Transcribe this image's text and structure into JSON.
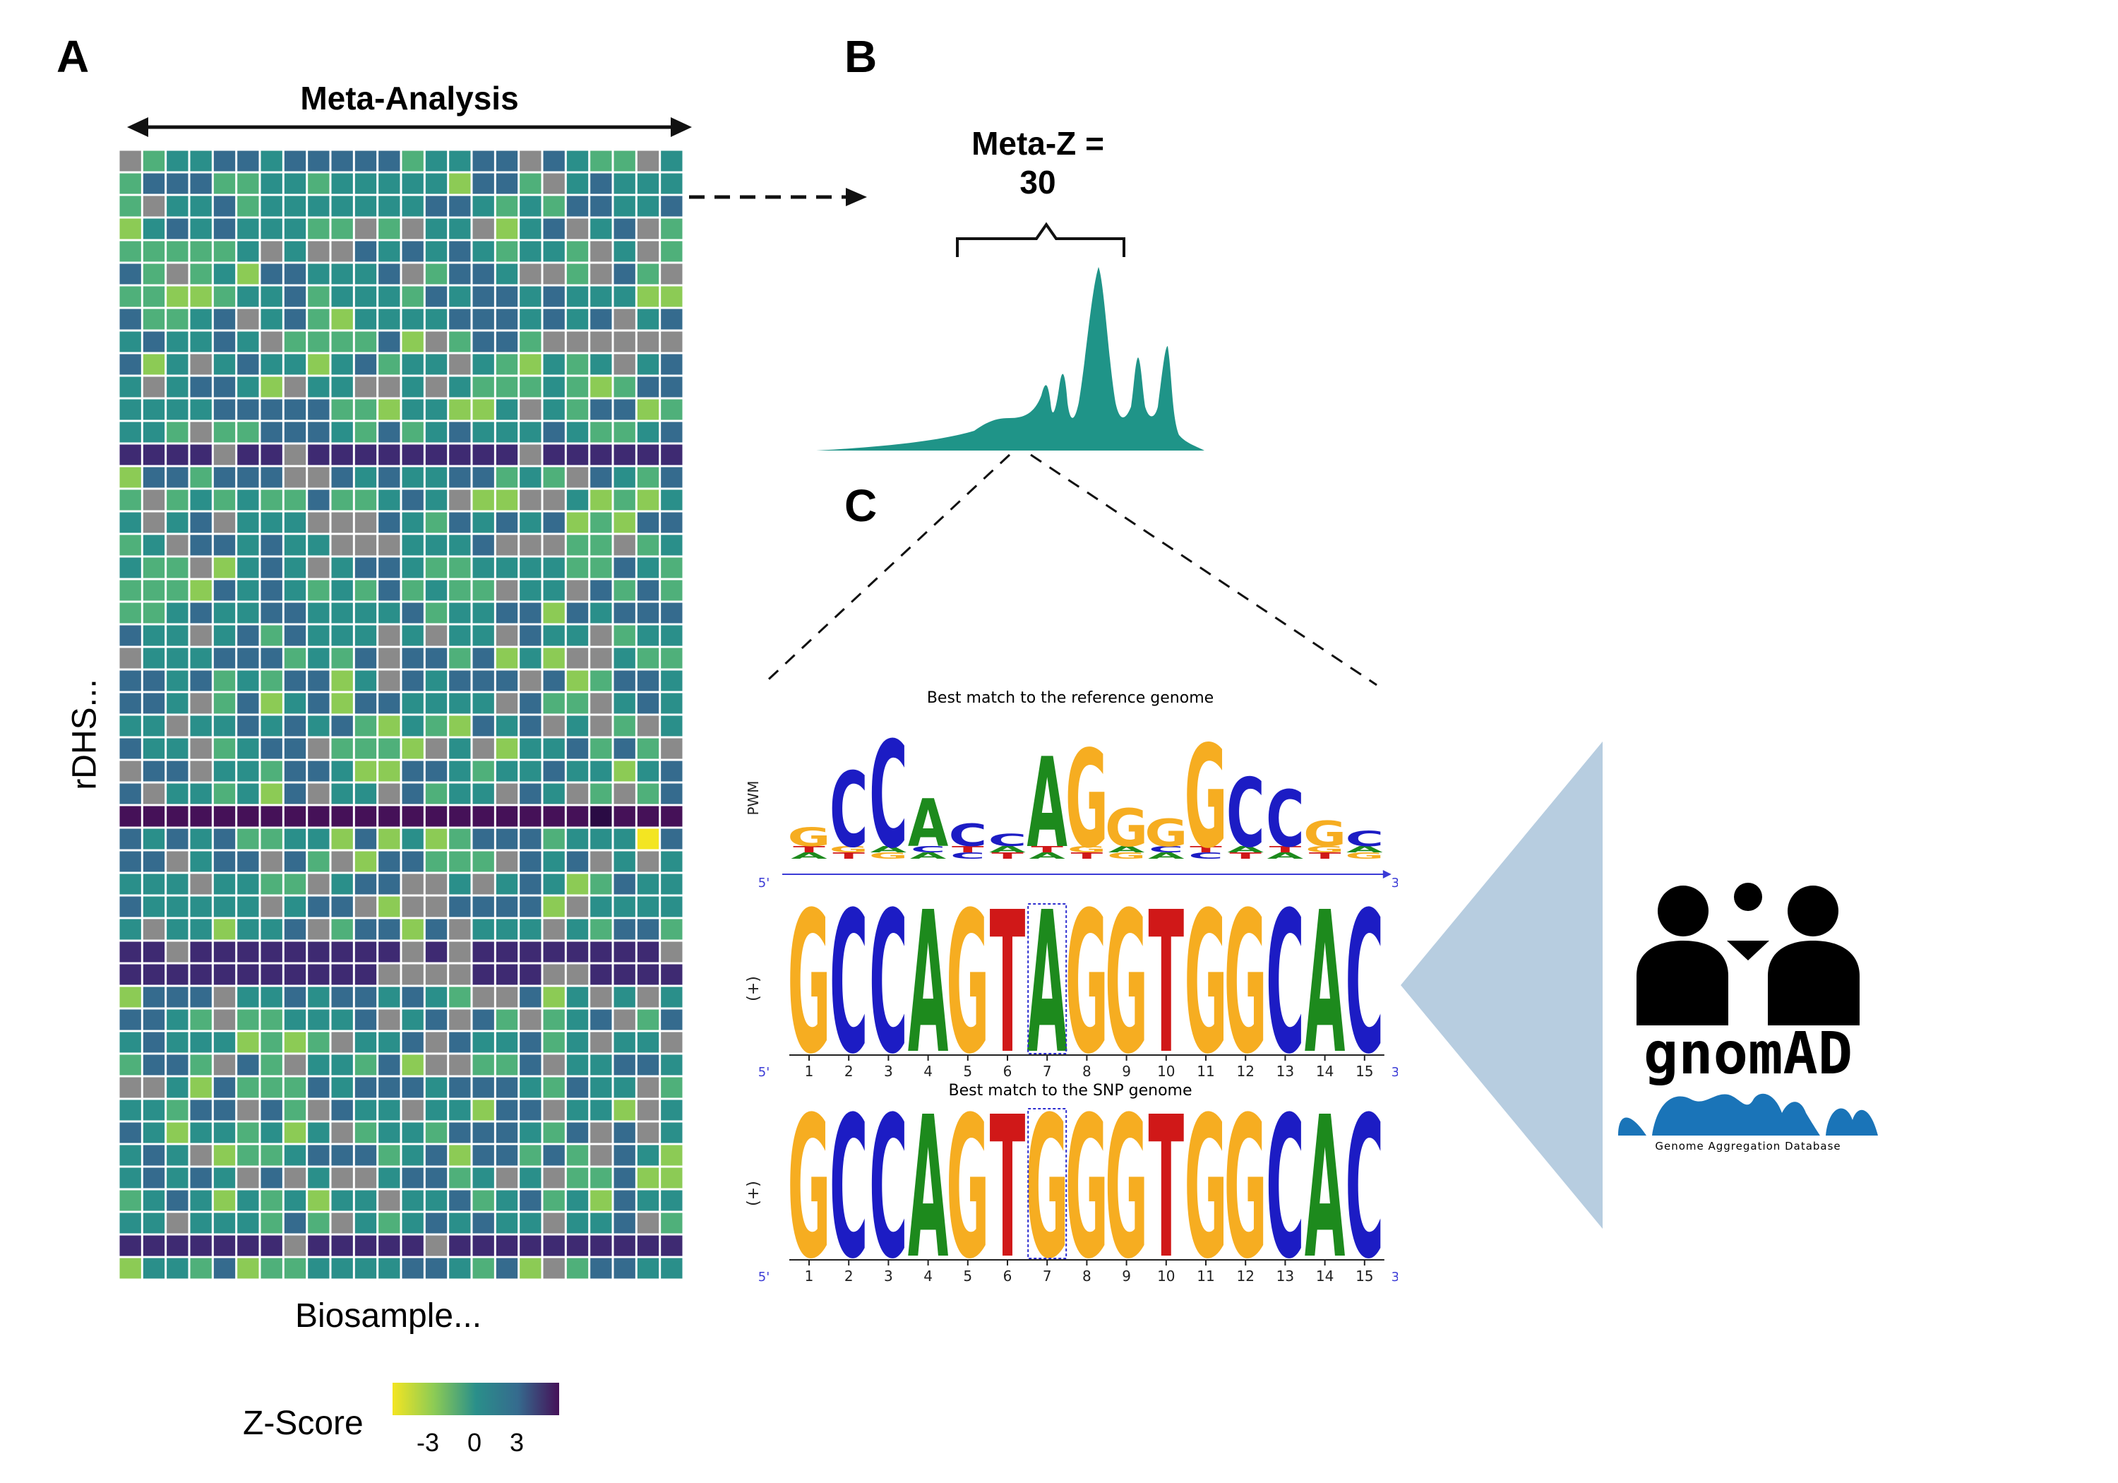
{
  "panels": {
    "a": "A",
    "b": "B",
    "c": "C"
  },
  "heatmap": {
    "top_label": "Meta-Analysis",
    "y_label": "rDHS...",
    "x_label": "Biosample...",
    "rows": 50,
    "cols": 24,
    "legend": {
      "title": "Z-Score",
      "ticks": [
        "-3",
        "0",
        "3"
      ]
    },
    "colors": {
      "teal": "#2a8f8a",
      "blue": "#356b8e",
      "green": "#4fb07a",
      "lime": "#8ccb55",
      "yellow": "#f3e522",
      "purple": "#3e2a72",
      "dark": "#451158",
      "gray": "#8a8a8a"
    }
  },
  "meta": {
    "label": "Meta-Z =\n30",
    "peak_color": "#1f9488"
  },
  "motif": {
    "title_ref": "Best match to the reference genome",
    "title_snp": "Best match to the SNP genome",
    "pwm_label": "PWM",
    "strand_label": "(+)",
    "five": "5'",
    "three": "3'",
    "ref_seq": [
      "G",
      "C",
      "C",
      "A",
      "G",
      "T",
      "A",
      "G",
      "G",
      "T",
      "G",
      "G",
      "C",
      "A",
      "C"
    ],
    "snp_seq": [
      "G",
      "C",
      "C",
      "A",
      "G",
      "T",
      "G",
      "G",
      "G",
      "T",
      "G",
      "G",
      "C",
      "A",
      "C"
    ],
    "positions": [
      "1",
      "2",
      "3",
      "4",
      "5",
      "6",
      "7",
      "8",
      "9",
      "10",
      "11",
      "12",
      "13",
      "14",
      "15"
    ],
    "pwm_top": [
      "G",
      "C",
      "C",
      "A",
      "C",
      "C",
      "A",
      "G",
      "G",
      "G",
      "G",
      "C",
      "C",
      "G",
      "C"
    ],
    "pwm_heights": [
      0.15,
      0.6,
      0.85,
      0.38,
      0.18,
      0.1,
      0.72,
      0.78,
      0.3,
      0.22,
      0.82,
      0.55,
      0.45,
      0.2,
      0.12
    ],
    "base_colors": {
      "A": "#1d8a1d",
      "C": "#1c1cc4",
      "G": "#f6ad21",
      "T": "#d01818"
    }
  },
  "gnomad": {
    "name": "gnomAD",
    "subtitle": "Genome Aggregation Database",
    "wedge_color": "#b7cde0",
    "wave_color": "#1a74b8"
  }
}
